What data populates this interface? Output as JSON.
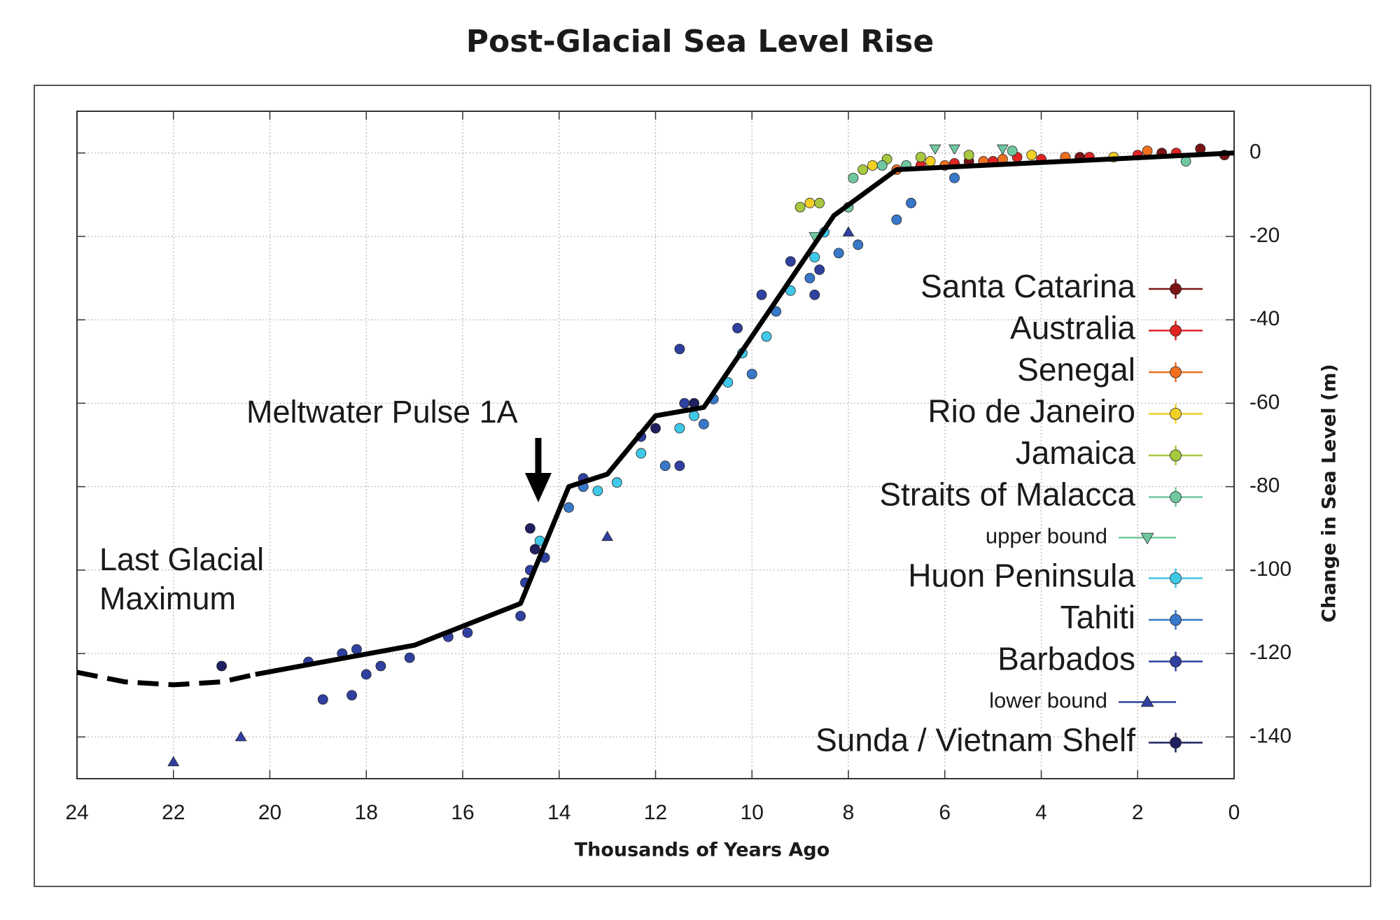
{
  "chart_data": {
    "type": "scatter",
    "title": "Post-Glacial Sea Level Rise",
    "x_label": "Thousands of Years Ago",
    "y_label": "Change in Sea Level (m)",
    "xlim": [
      24,
      0
    ],
    "ylim": [
      -150,
      10
    ],
    "xticks": [
      24,
      22,
      20,
      18,
      16,
      14,
      12,
      10,
      8,
      6,
      4,
      2,
      0
    ],
    "yticks": [
      0,
      -20,
      -40,
      -60,
      -80,
      -100,
      -120,
      -140
    ],
    "grid": true,
    "legend": "right",
    "annotations": [
      {
        "lines": [
          "Meltwater Pulse 1A"
        ]
      },
      {
        "lines": [
          "Last Glacial",
          "Maximum"
        ]
      }
    ],
    "lines": [
      {
        "color": "#000000",
        "dashed": true,
        "x": [
          24,
          23,
          22,
          21,
          20.3
        ],
        "values": [
          -124.5,
          -126.8,
          -127.5,
          -126.8,
          -125
        ]
      },
      {
        "color": "#000000",
        "dashed": false,
        "x": [
          20.3,
          17,
          14.8,
          13.8,
          13,
          12,
          11,
          8.3,
          7,
          0
        ],
        "values": [
          -125,
          -118,
          -108,
          -80,
          -77,
          -63,
          -61,
          -15,
          -4,
          0
        ]
      }
    ],
    "series": [
      {
        "name": "Santa Catarina",
        "color": "#7a1414",
        "marker": "circle",
        "x": [
          0.7,
          1.5,
          3.2,
          5.5,
          0.2
        ],
        "values": [
          1,
          0,
          -1,
          -2,
          -0.5
        ]
      },
      {
        "name": "Australia",
        "color": "#e02424",
        "marker": "circle",
        "x": [
          6.5,
          5.8,
          5,
          4.5,
          4,
          3,
          2,
          1.2
        ],
        "values": [
          -3,
          -2.5,
          -2,
          -1,
          -1.5,
          -1,
          -0.5,
          0
        ]
      },
      {
        "name": "Senegal",
        "color": "#f07020",
        "marker": "circle",
        "x": [
          7,
          6,
          5.2,
          4.8,
          3.5,
          1.8
        ],
        "values": [
          -4,
          -3,
          -2,
          -1.5,
          -1,
          0.5
        ]
      },
      {
        "name": "Rio de Janeiro",
        "color": "#f2d024",
        "marker": "circle",
        "x": [
          8.8,
          7.5,
          6.3,
          4.2,
          2.5
        ],
        "values": [
          -12,
          -3,
          -2,
          -0.5,
          -1
        ]
      },
      {
        "name": "Jamaica",
        "color": "#a8c840",
        "marker": "circle",
        "x": [
          9,
          8.6,
          7.7,
          7.2,
          6.5,
          5.5
        ],
        "values": [
          -13,
          -12,
          -4,
          -1.5,
          -1,
          -0.5
        ]
      },
      {
        "name": "Straits of Malacca",
        "color": "#70c8a0",
        "marker": "circle",
        "x": [
          8,
          7.9,
          7.3,
          6.8,
          4.6,
          1
        ],
        "values": [
          -13,
          -6,
          -3,
          -3,
          0.5,
          -2
        ]
      },
      {
        "name": "upper bound",
        "small": true,
        "color": "#70c8a0",
        "marker": "triangle-down",
        "x": [
          8.7,
          6.2,
          5.8,
          4.8
        ],
        "values": [
          -20,
          1,
          1,
          1
        ]
      },
      {
        "name": "Huon Peninsula",
        "color": "#40c8e8",
        "marker": "circle",
        "x": [
          14.4,
          13.2,
          12.8,
          12.3,
          11.5,
          11.2,
          10.5,
          10.2,
          9.7,
          9.2,
          8.7,
          8.5
        ],
        "values": [
          -93,
          -81,
          -79,
          -72,
          -66,
          -63,
          -55,
          -48,
          -44,
          -33,
          -25,
          -19
        ]
      },
      {
        "name": "Tahiti",
        "color": "#3878c8",
        "marker": "circle",
        "x": [
          13.8,
          13.5,
          11.8,
          11,
          10.8,
          10,
          9.5,
          8.8,
          8.2,
          7.8,
          7,
          6.7,
          5.8
        ],
        "values": [
          -85,
          -80,
          -75,
          -65,
          -59,
          -53,
          -38,
          -30,
          -24,
          -22,
          -16,
          -12,
          -6
        ]
      },
      {
        "name": "Barbados",
        "color": "#3040a0",
        "marker": "circle",
        "x": [
          19.2,
          18.9,
          18.5,
          18.3,
          18.2,
          18,
          17.7,
          17.1,
          16.3,
          15.9,
          14.8,
          14.7,
          14.6,
          14.5,
          14.3,
          13.5,
          12.3,
          11.5,
          11.5,
          11.4,
          10.3,
          9.8,
          9.2,
          8.7,
          8.6
        ],
        "values": [
          -122,
          -131,
          -120,
          -130,
          -119,
          -125,
          -123,
          -121,
          -116,
          -115,
          -111,
          -103,
          -100,
          -95,
          -97,
          -78,
          -68,
          -75,
          -47,
          -60,
          -42,
          -34,
          -26,
          -34,
          -28
        ]
      },
      {
        "name": "lower bound",
        "small": true,
        "color": "#3040a0",
        "marker": "triangle",
        "x": [
          22,
          20.6,
          13,
          8
        ],
        "values": [
          -146,
          -140,
          -92,
          -19
        ]
      },
      {
        "name": "Sunda / Vietnam Shelf",
        "color": "#202060",
        "marker": "circle",
        "x": [
          21,
          14.6,
          14.5,
          12,
          11.2
        ],
        "values": [
          -123,
          -90,
          -95,
          -66,
          -60
        ]
      }
    ]
  }
}
